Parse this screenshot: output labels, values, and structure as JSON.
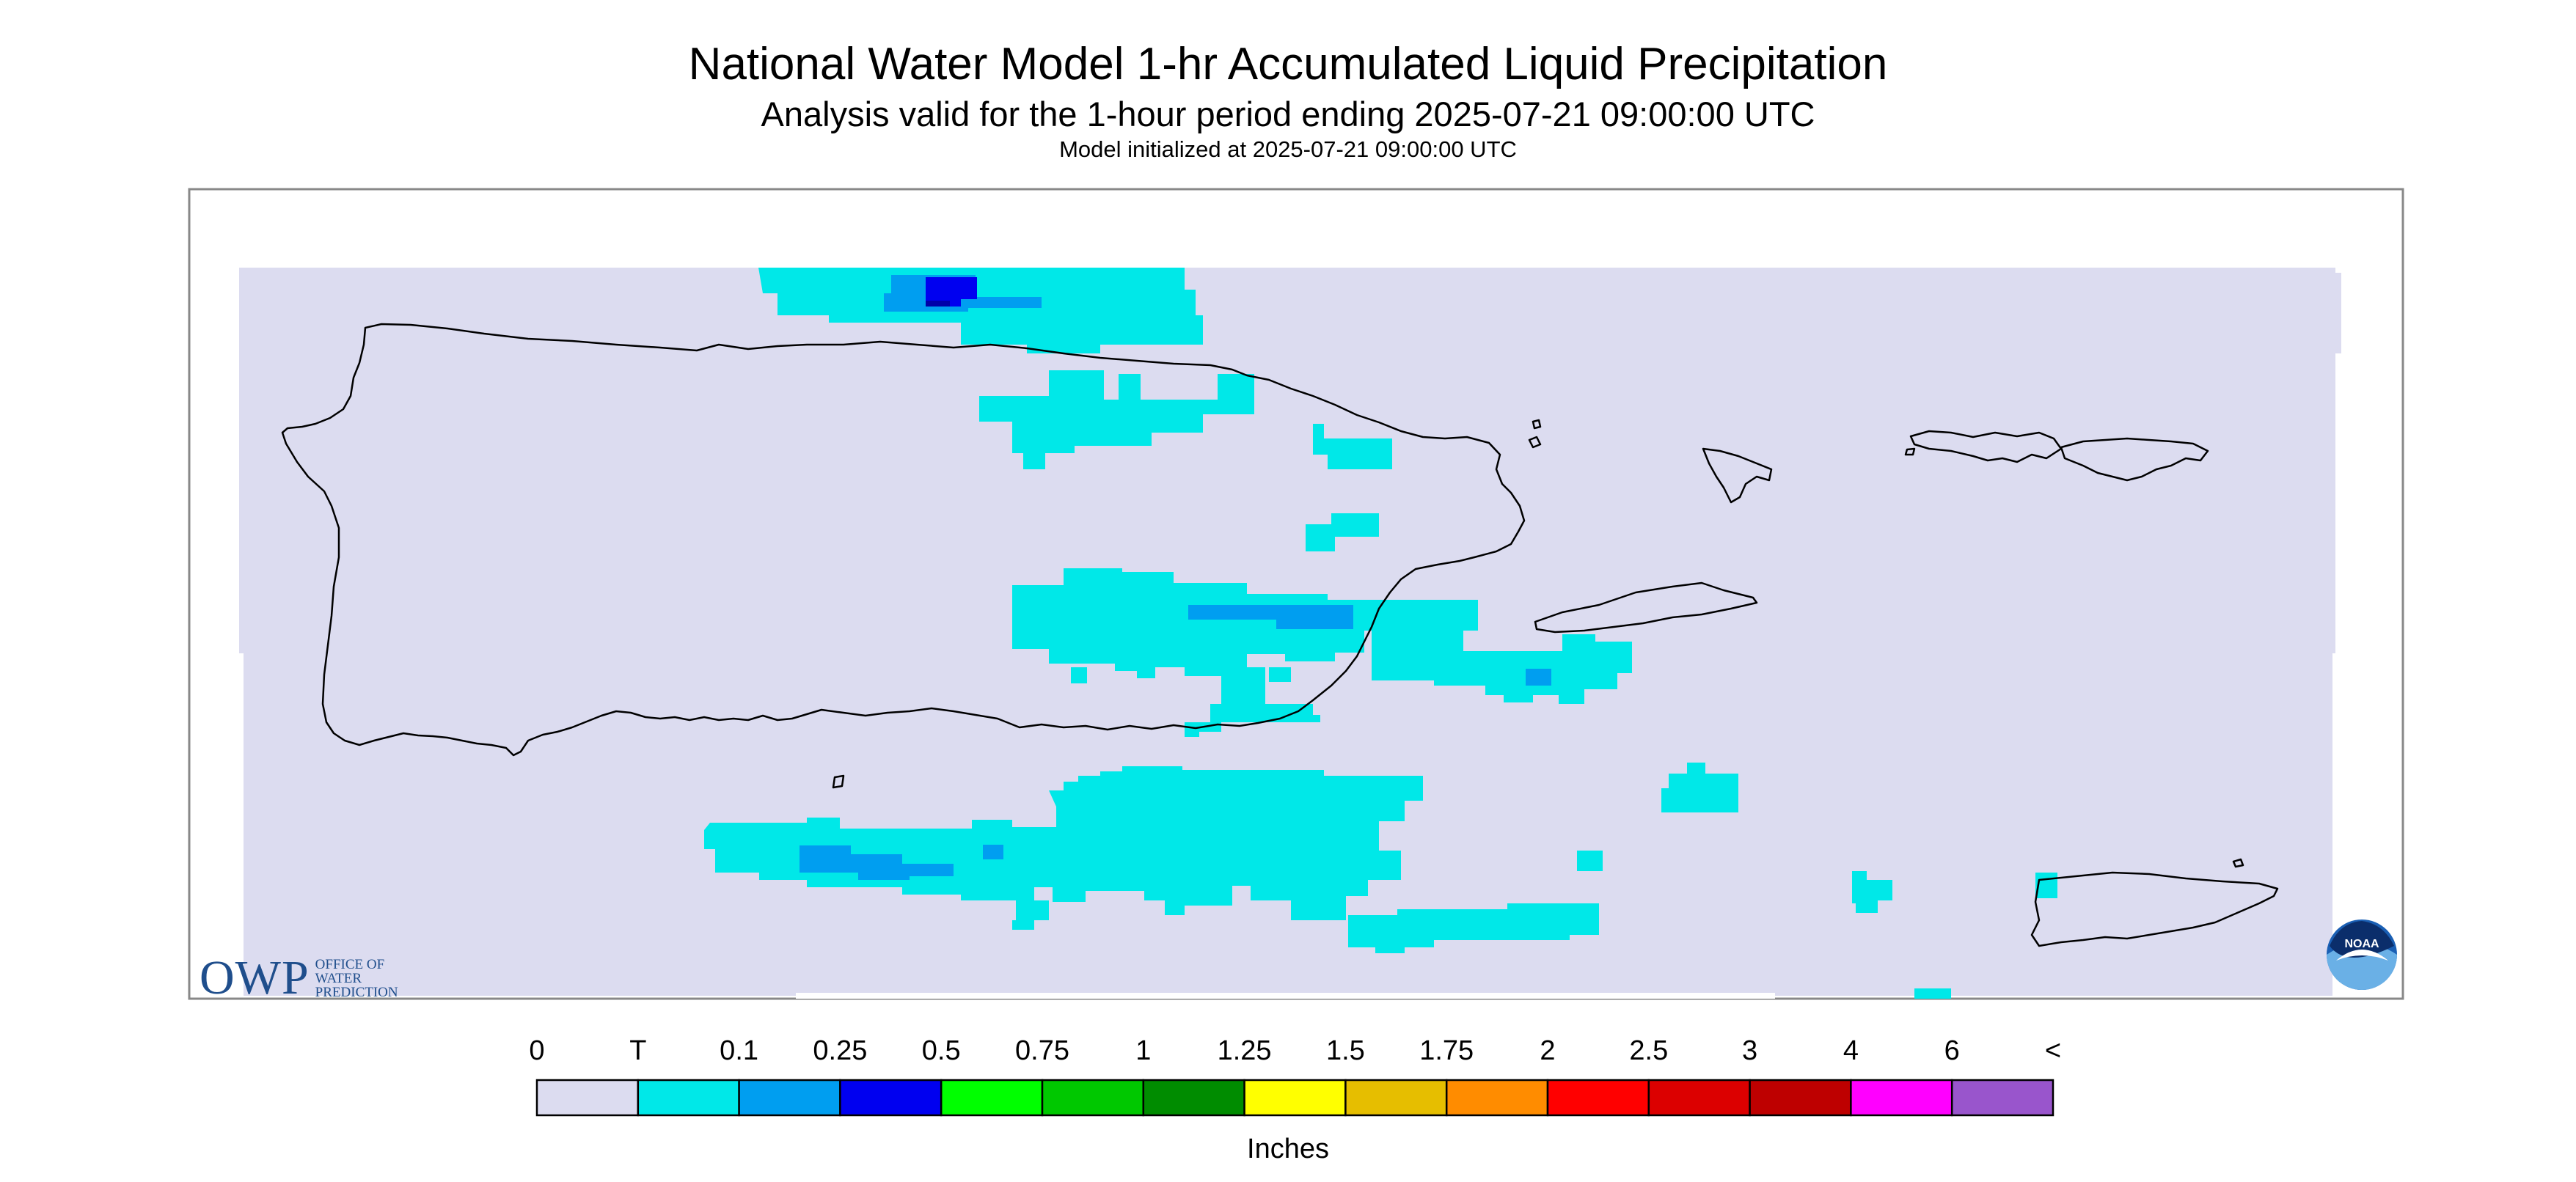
{
  "header": {
    "title": "National Water Model 1-hr Accumulated Liquid Precipitation",
    "subtitle": "Analysis valid for the 1-hour period ending 2025-07-21 09:00:00 UTC",
    "init": "Model initialized at 2025-07-21 09:00:00 UTC"
  },
  "legend": {
    "labels": [
      "0",
      "T",
      "0.1",
      "0.25",
      "0.5",
      "0.75",
      "1",
      "1.25",
      "1.5",
      "1.75",
      "2",
      "2.5",
      "3",
      "4",
      "6",
      "<"
    ],
    "colors": [
      "#dcdcf0",
      "#00e8e8",
      "#009ef0",
      "#0000f0",
      "#00ff00",
      "#00c800",
      "#008c00",
      "#ffff00",
      "#e6be00",
      "#ff8c00",
      "#ff0000",
      "#dc0000",
      "#be0000",
      "#ff00ff",
      "#9955cc"
    ],
    "units": "Inches"
  },
  "logos": {
    "owp_mark": "OWP",
    "owp_text": [
      "OFFICE OF",
      "WATER",
      "PREDICTION"
    ],
    "noaa_text": "NOAA"
  },
  "map": {
    "background_color": "#dcdcf0",
    "trace_color": "#00e8e8",
    "light_color": "#009ef0",
    "heavy_color": "#0000f0",
    "outline_color": "#000000",
    "regions": [
      "Puerto Rico",
      "Vieques",
      "Culebra",
      "St. Thomas",
      "St. John",
      "St. Croix"
    ]
  }
}
